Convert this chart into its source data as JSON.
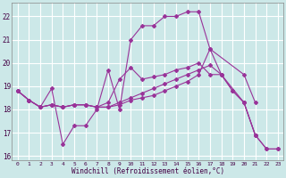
{
  "xlabel": "Windchill (Refroidissement éolien,°C)",
  "background_color": "#cce8e8",
  "line_color": "#993399",
  "grid_color": "#aacccc",
  "xlim": [
    -0.5,
    23.5
  ],
  "ylim": [
    15.8,
    22.6
  ],
  "yticks": [
    16,
    17,
    18,
    19,
    20,
    21,
    22
  ],
  "xticks": [
    0,
    1,
    2,
    3,
    4,
    5,
    6,
    7,
    8,
    9,
    10,
    11,
    12,
    13,
    14,
    15,
    16,
    17,
    18,
    19,
    20,
    21,
    22,
    23
  ],
  "series": [
    {
      "x": [
        0,
        1,
        2,
        3,
        4,
        5,
        6,
        7,
        8,
        9,
        10,
        11,
        12,
        13,
        14,
        15,
        16,
        17,
        20,
        21
      ],
      "y": [
        18.8,
        18.4,
        18.1,
        18.9,
        16.5,
        17.3,
        17.3,
        18.0,
        19.7,
        18.0,
        21.0,
        21.6,
        21.6,
        22.0,
        22.0,
        22.2,
        22.2,
        20.6,
        19.5,
        18.3
      ]
    },
    {
      "x": [
        0,
        1,
        2,
        3,
        4,
        5,
        6,
        7,
        8,
        9,
        10,
        11,
        12,
        13,
        14,
        15,
        16,
        17,
        18,
        19,
        20,
        21,
        22,
        23
      ],
      "y": [
        18.8,
        18.4,
        18.1,
        18.2,
        18.1,
        18.2,
        18.2,
        18.1,
        18.1,
        18.2,
        18.4,
        18.5,
        18.6,
        18.8,
        19.0,
        19.2,
        19.5,
        20.6,
        19.5,
        18.8,
        18.3,
        16.9,
        16.3,
        16.3
      ]
    },
    {
      "x": [
        0,
        1,
        2,
        3,
        4,
        5,
        6,
        7,
        8,
        9,
        10,
        11,
        12,
        13,
        14,
        15,
        16,
        17,
        18,
        19,
        20,
        21,
        22,
        23
      ],
      "y": [
        18.8,
        18.4,
        18.1,
        18.2,
        18.1,
        18.2,
        18.2,
        18.1,
        18.1,
        18.3,
        18.5,
        18.7,
        18.9,
        19.1,
        19.3,
        19.5,
        19.7,
        19.9,
        19.5,
        18.8,
        18.3,
        16.9,
        16.3,
        16.3
      ]
    },
    {
      "x": [
        0,
        1,
        2,
        3,
        4,
        5,
        6,
        7,
        8,
        9,
        10,
        11,
        12,
        13,
        14,
        15,
        16,
        17,
        18,
        20,
        21
      ],
      "y": [
        18.8,
        18.4,
        18.1,
        18.2,
        18.1,
        18.2,
        18.2,
        18.1,
        18.3,
        19.3,
        19.8,
        19.3,
        19.4,
        19.5,
        19.7,
        19.8,
        20.0,
        19.5,
        19.5,
        18.3,
        16.9
      ]
    }
  ]
}
